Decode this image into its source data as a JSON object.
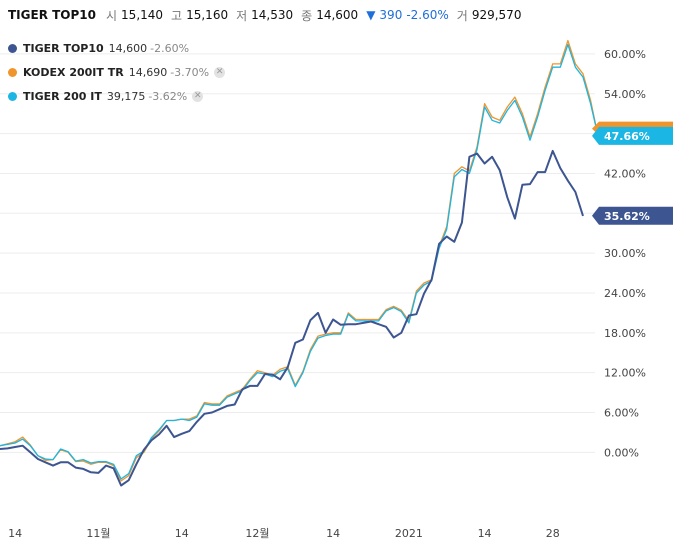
{
  "header": {
    "title": "TIGER TOP10",
    "open_label": "시",
    "open": "15,140",
    "high_label": "고",
    "high": "15,160",
    "low_label": "저",
    "low": "14,530",
    "close_label": "종",
    "close": "14,600",
    "change_arrow": "▼",
    "change": "390",
    "change_pct": "-2.60%",
    "volume_label": "거",
    "volume": "929,570"
  },
  "legend": [
    {
      "name": "TIGER TOP10",
      "value": "14,600",
      "change": "-2.60%",
      "color": "#3d5590",
      "removable": false
    },
    {
      "name": "KODEX 200IT TR",
      "value": "14,690",
      "change": "-3.70%",
      "color": "#f0942c",
      "removable": true
    },
    {
      "name": "TIGER 200 IT",
      "value": "39,175",
      "change": "-3.62%",
      "color": "#1bb6e4",
      "removable": true
    }
  ],
  "chart_data": {
    "type": "line",
    "y_ticks": [
      "60.00%",
      "54.00%",
      "48.00%",
      "42.00%",
      "36.00%",
      "30.00%",
      "24.00%",
      "18.00%",
      "12.00%",
      "6.00%",
      "0.00%"
    ],
    "y_tick_values": [
      60,
      54,
      48,
      42,
      36,
      30,
      24,
      18,
      12,
      6,
      0
    ],
    "ylim": [
      -13.2,
      63.6
    ],
    "x_ticks": [
      "14",
      "11월",
      "14",
      "12월",
      "14",
      "2021",
      "14",
      "28"
    ],
    "x_tick_index": [
      2,
      13,
      24,
      34,
      44,
      54,
      64,
      73
    ],
    "grid": true,
    "series": [
      {
        "name": "TIGER TOP10",
        "color": "#3d5590",
        "last_label": "35.62%",
        "values": [
          0.5,
          0.6,
          0.8,
          1.0,
          0.0,
          -1.0,
          -1.5,
          -2.0,
          -1.5,
          -1.5,
          -2.3,
          -2.5,
          -3.0,
          -3.1,
          -2.0,
          -2.4,
          -5.0,
          -4.2,
          -1.8,
          0.4,
          1.8,
          2.7,
          4.0,
          2.3,
          2.8,
          3.2,
          4.6,
          5.8,
          6.0,
          6.5,
          7.0,
          7.2,
          9.5,
          10.0,
          10.0,
          11.8,
          11.7,
          11.0,
          12.8,
          16.5,
          17.0,
          19.9,
          21.0,
          18.0,
          20.0,
          19.2,
          19.3,
          19.3,
          19.5,
          19.7,
          19.3,
          18.9,
          17.3,
          18.0,
          20.6,
          20.8,
          23.9,
          26.0,
          31.4,
          32.5,
          31.7,
          34.6,
          44.5,
          45.0,
          43.5,
          44.5,
          42.5,
          38.4,
          35.2,
          40.3,
          40.4,
          42.2,
          42.2,
          45.4,
          42.8,
          40.9,
          39.2,
          35.6
        ]
      },
      {
        "name": "KODEX 200IT TR",
        "color": "#f0942c",
        "last_label": "",
        "values": [
          1.0,
          1.3,
          1.6,
          2.3,
          1.1,
          -0.5,
          -1.2,
          -1.1,
          0.4,
          0.0,
          -1.4,
          -1.3,
          -1.8,
          -1.5,
          -1.5,
          -2.0,
          -4.3,
          -3.5,
          -0.8,
          0.0,
          2.0,
          3.2,
          4.8,
          4.8,
          5.0,
          5.0,
          5.5,
          7.5,
          7.3,
          7.3,
          8.5,
          9.0,
          9.5,
          11.0,
          12.3,
          12.0,
          11.6,
          12.5,
          12.9,
          10.1,
          12.2,
          15.5,
          17.5,
          17.8,
          18.0,
          18.0,
          21.0,
          20.0,
          20.0,
          20.0,
          20.0,
          21.5,
          22.0,
          21.4,
          19.8,
          24.3,
          25.5,
          26.0,
          31.0,
          34.0,
          42.0,
          43.0,
          42.4,
          46.0,
          52.5,
          50.5,
          50.0,
          52.0,
          53.5,
          51.0,
          47.5,
          51.0,
          55.0,
          58.5,
          58.5,
          62.0,
          58.5,
          57.0,
          53.0,
          47.6
        ]
      },
      {
        "name": "TIGER 200 IT",
        "color": "#1bb6e4",
        "last_label": "47.66%",
        "values": [
          1.0,
          1.2,
          1.4,
          2.0,
          1.0,
          -0.5,
          -1.0,
          -1.1,
          0.5,
          0.1,
          -1.3,
          -1.1,
          -1.6,
          -1.4,
          -1.4,
          -1.8,
          -4.0,
          -3.2,
          -0.5,
          0.2,
          2.2,
          3.4,
          4.8,
          4.8,
          5.0,
          4.8,
          5.3,
          7.3,
          7.1,
          7.1,
          8.3,
          8.8,
          9.3,
          10.8,
          12.0,
          11.8,
          11.4,
          12.2,
          12.6,
          9.9,
          12.0,
          15.2,
          17.2,
          17.6,
          17.8,
          17.8,
          20.8,
          19.8,
          19.8,
          19.8,
          19.8,
          21.3,
          21.8,
          21.2,
          19.5,
          24.0,
          25.2,
          25.8,
          30.7,
          33.6,
          41.5,
          42.6,
          42.0,
          45.6,
          52.0,
          50.0,
          49.6,
          51.5,
          53.0,
          50.5,
          47.0,
          50.5,
          54.5,
          58.0,
          58.0,
          61.4,
          58.0,
          56.5,
          52.5,
          47.6
        ]
      }
    ],
    "side_badges": [
      {
        "text": "",
        "color": "#f0942c",
        "value": 48.3
      },
      {
        "text": "47.66%",
        "color": "#1bb6e4",
        "value": 47.66
      },
      {
        "text": "35.62%",
        "color": "#3d5590",
        "value": 35.62
      }
    ]
  }
}
